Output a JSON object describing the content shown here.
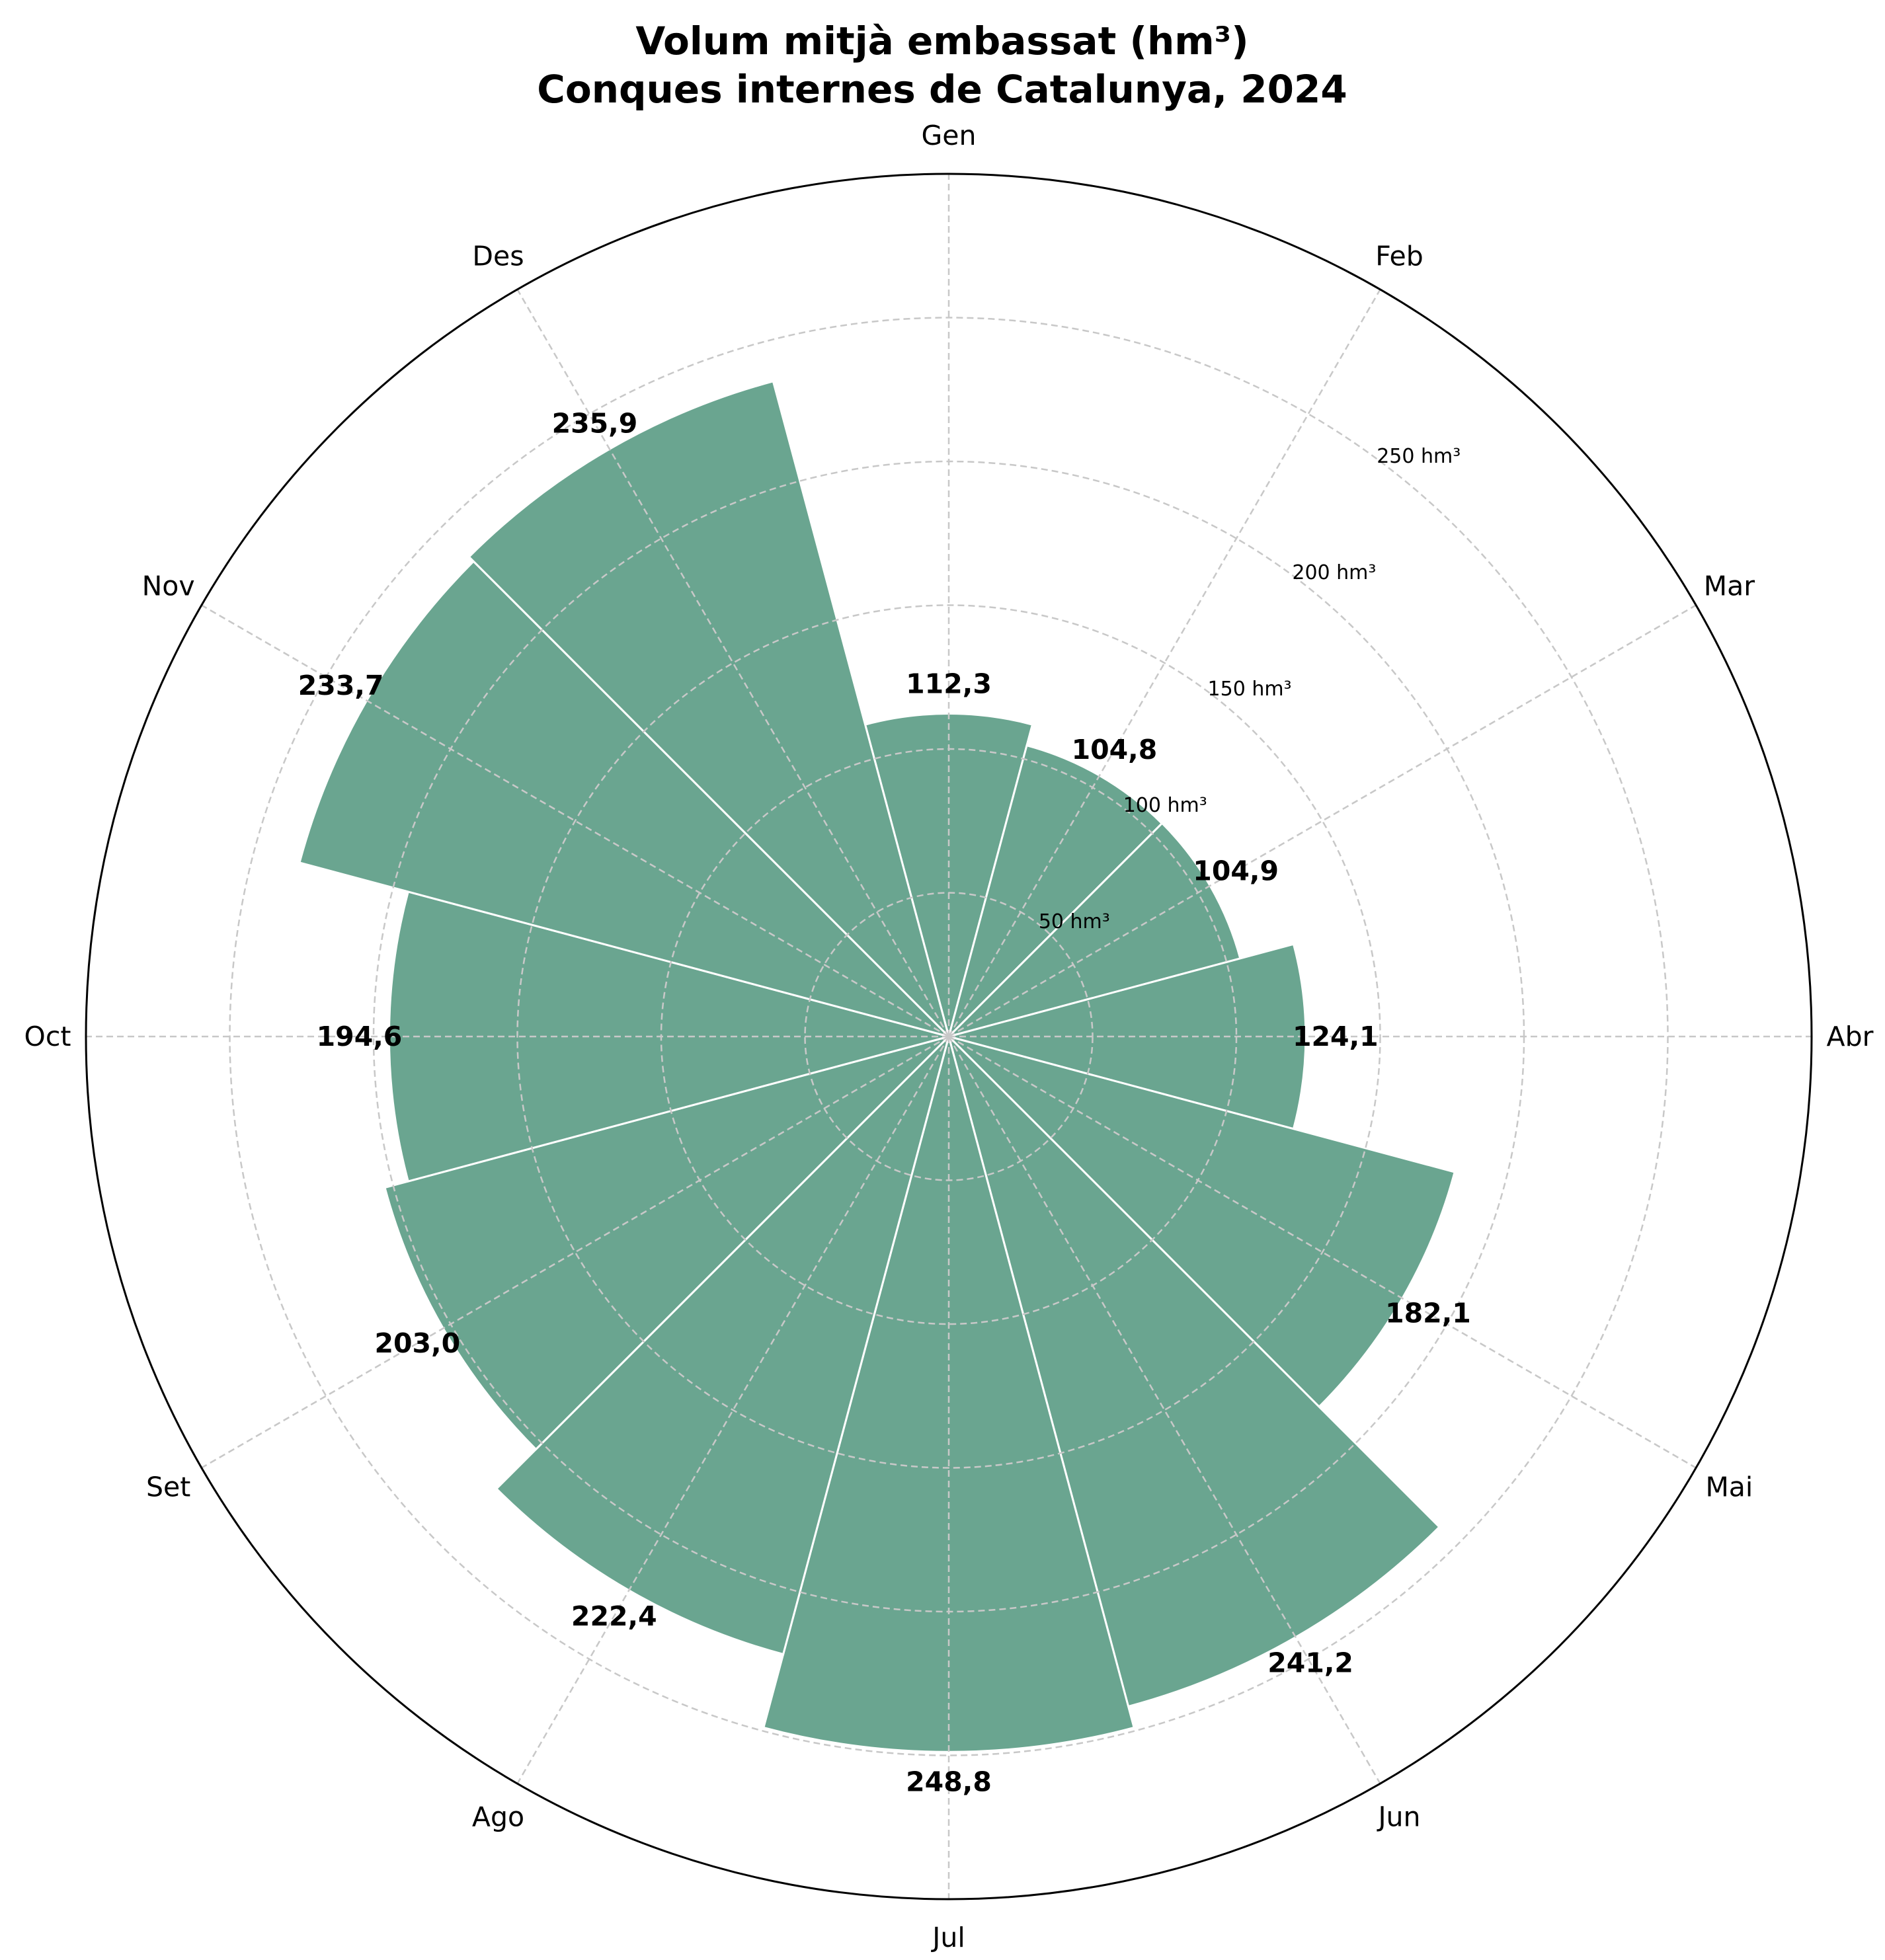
{
  "chart_data": {
    "type": "bar",
    "subtype": "polar",
    "title": [
      "Volum mitjà embassat (hm³)",
      "Conques internes de Catalunya, 2024"
    ],
    "categories": [
      "Gen",
      "Feb",
      "Mar",
      "Abr",
      "Mai",
      "Jun",
      "Jul",
      "Ago",
      "Set",
      "Oct",
      "Nov",
      "Des"
    ],
    "values": [
      112.3,
      104.8,
      104.9,
      124.1,
      182.1,
      241.2,
      248.8,
      222.4,
      203.0,
      194.6,
      233.7,
      235.9
    ],
    "value_labels": [
      "112,3",
      "104,8",
      "104,9",
      "124,1",
      "182,1",
      "241,2",
      "248,8",
      "222,4",
      "203,0",
      "194,6",
      "233,7",
      "235,9"
    ],
    "radial_ticks": [
      50,
      100,
      150,
      200,
      250
    ],
    "radial_tick_labels": [
      "50 hm³",
      "100 hm³",
      "150 hm³",
      "200 hm³",
      "250 hm³"
    ],
    "rlim": [
      0,
      300
    ],
    "direction": "clockwise",
    "start": "top",
    "grid": true,
    "bar_color": "#6aa590",
    "bar_edge_color": "#ffffff",
    "grid_color": "#c8c8c8"
  }
}
